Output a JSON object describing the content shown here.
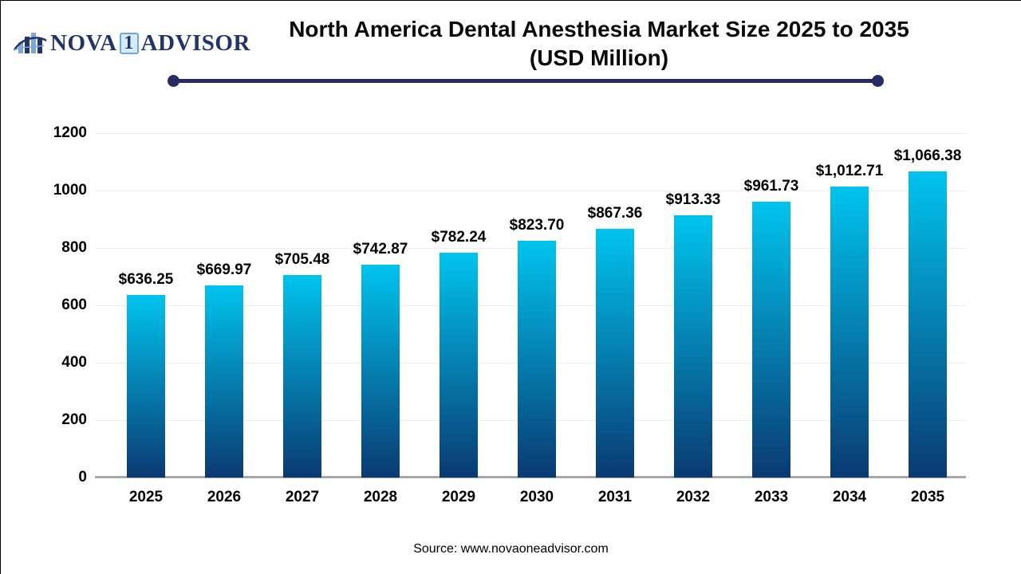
{
  "logo": {
    "part1": "NOVA",
    "badge": "1",
    "part2": "ADVISOR"
  },
  "title": {
    "line1": "North America Dental Anesthesia Market Size 2025 to 2035",
    "line2": "(USD Million)"
  },
  "source": "Source: www.novaoneadvisor.com",
  "colors": {
    "bar_top": "#00c4ee",
    "bar_bottom": "#0a3a72",
    "accent_navy": "#262c63",
    "gridline": "#ededed",
    "baseline": "#a8a8a8",
    "label": "#000000"
  },
  "chart_data": {
    "type": "bar",
    "title": "North America Dental Anesthesia Market Size 2025 to 2035 (USD Million)",
    "xlabel": "",
    "ylabel": "",
    "categories": [
      "2025",
      "2026",
      "2027",
      "2028",
      "2029",
      "2030",
      "2031",
      "2032",
      "2033",
      "2034",
      "2035"
    ],
    "values": [
      636.25,
      669.97,
      705.48,
      742.87,
      782.24,
      823.7,
      867.36,
      913.33,
      961.73,
      1012.71,
      1066.38
    ],
    "value_labels": [
      "$636.25",
      "$669.97",
      "$705.48",
      "$742.87",
      "$782.24",
      "$823.70",
      "$867.36",
      "$913.33",
      "$961.73",
      "$1,012.71",
      "$1,066.38"
    ],
    "ylim": [
      0,
      1200
    ],
    "yticks": [
      0,
      200,
      400,
      600,
      800,
      1000,
      1200
    ],
    "grid": true,
    "legend": false,
    "bar_gradient": [
      "#00c4ee",
      "#0a3a72"
    ]
  }
}
